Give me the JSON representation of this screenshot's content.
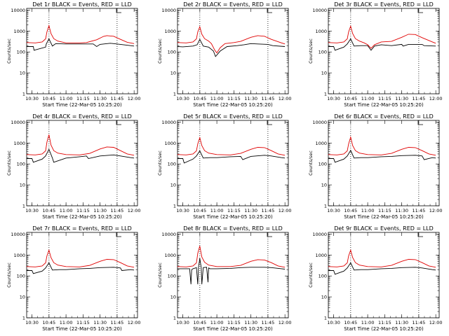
{
  "chart_data": [
    {
      "type": "line",
      "title": "Det 1r BLACK = Events, RED = LLD",
      "xlabel": "Start Time (22-Mar-05 10:25:20)",
      "ylabel": "Counts/sec",
      "xticks": [
        "10:30",
        "10:45",
        "11:00",
        "11:15",
        "11:30",
        "11:45",
        "12:00"
      ],
      "yticks": [
        "1",
        "10",
        "100",
        "1000",
        "10000"
      ],
      "ylim": [
        1,
        12000
      ],
      "yscale": "log",
      "series": [
        {
          "name": "Events",
          "color": "#000000",
          "x": [
            10.42,
            10.52,
            10.53,
            10.7,
            10.71,
            10.75,
            10.8,
            10.85,
            11.0,
            11.25,
            11.4,
            11.45,
            11.5,
            11.65,
            11.7,
            11.8,
            11.95,
            12.0
          ],
          "y": [
            180,
            180,
            120,
            170,
            240,
            420,
            190,
            250,
            240,
            240,
            240,
            180,
            230,
            260,
            250,
            230,
            200,
            190
          ]
        },
        {
          "name": "LLD",
          "color": "#e00000",
          "x": [
            10.42,
            10.55,
            10.65,
            10.7,
            10.72,
            10.75,
            10.78,
            10.82,
            10.88,
            11.0,
            11.2,
            11.3,
            11.45,
            11.55,
            11.6,
            11.7,
            11.8,
            11.9,
            12.0
          ],
          "y": [
            280,
            270,
            300,
            420,
            900,
            1800,
            750,
            430,
            330,
            270,
            270,
            280,
            380,
            550,
            600,
            560,
            400,
            290,
            250
          ]
        }
      ]
    },
    {
      "type": "line",
      "title": "Det 2r BLACK = Events, RED = LLD",
      "xlabel": "Start Time (22-Mar-05 10:25:20)",
      "ylabel": "Counts/sec",
      "xticks": [
        "10:30",
        "10:45",
        "11:00",
        "11:15",
        "11:30",
        "11:45",
        "12:00"
      ],
      "yticks": [
        "1",
        "10",
        "100",
        "1000",
        "10000"
      ],
      "ylim": [
        1,
        12000
      ],
      "yscale": "log",
      "series": [
        {
          "name": "Events",
          "color": "#000000",
          "x": [
            10.42,
            10.5,
            10.65,
            10.71,
            10.75,
            10.8,
            10.88,
            10.95,
            10.98,
            11.05,
            11.15,
            11.3,
            11.4,
            11.5,
            11.6,
            11.75,
            11.82,
            12.0
          ],
          "y": [
            180,
            175,
            190,
            220,
            400,
            190,
            170,
            110,
            60,
            110,
            180,
            200,
            220,
            250,
            240,
            230,
            200,
            180
          ]
        },
        {
          "name": "LLD",
          "color": "#e00000",
          "x": [
            10.42,
            10.55,
            10.65,
            10.7,
            10.72,
            10.75,
            10.78,
            10.82,
            10.88,
            10.92,
            10.97,
            11.0,
            11.05,
            11.12,
            11.25,
            11.35,
            11.5,
            11.6,
            11.7,
            11.8,
            11.95,
            12.0
          ],
          "y": [
            280,
            270,
            300,
            420,
            900,
            1600,
            700,
            430,
            330,
            250,
            120,
            90,
            160,
            250,
            280,
            320,
            500,
            600,
            560,
            400,
            270,
            240
          ]
        }
      ]
    },
    {
      "type": "line",
      "title": "Det 3r BLACK = Events, RED = LLD",
      "xlabel": "Start Time (22-Mar-05 10:25:20)",
      "ylabel": "Counts/sec",
      "xticks": [
        "10:30",
        "10:45",
        "11:00",
        "11:15",
        "11:30",
        "11:45",
        "12:00"
      ],
      "yticks": [
        "1",
        "10",
        "100",
        "1000",
        "10000"
      ],
      "ylim": [
        1,
        12000
      ],
      "yscale": "log",
      "series": [
        {
          "name": "Events",
          "color": "#000000",
          "x": [
            10.42,
            10.5,
            10.52,
            10.65,
            10.7,
            10.75,
            10.8,
            10.9,
            11.0,
            11.05,
            11.1,
            11.2,
            11.35,
            11.5,
            11.52,
            11.6,
            11.8,
            11.83,
            12.0
          ],
          "y": [
            180,
            180,
            120,
            170,
            240,
            420,
            190,
            200,
            200,
            120,
            190,
            220,
            200,
            230,
            190,
            230,
            230,
            200,
            190
          ]
        },
        {
          "name": "LLD",
          "color": "#e00000",
          "x": [
            10.42,
            10.55,
            10.65,
            10.7,
            10.72,
            10.75,
            10.78,
            10.82,
            10.88,
            10.95,
            11.0,
            11.05,
            11.1,
            11.2,
            11.35,
            11.5,
            11.6,
            11.7,
            11.8,
            11.95,
            12.0
          ],
          "y": [
            280,
            270,
            300,
            420,
            900,
            1700,
            750,
            430,
            330,
            270,
            220,
            150,
            220,
            300,
            320,
            500,
            700,
            680,
            480,
            300,
            260
          ]
        }
      ]
    },
    {
      "type": "line",
      "title": "Det 4r BLACK = Events, RED = LLD",
      "xlabel": "Start Time (22-Mar-05 10:25:20)",
      "ylabel": "Counts/sec",
      "xticks": [
        "10:30",
        "10:45",
        "11:00",
        "11:15",
        "11:30",
        "11:45",
        "12:00"
      ],
      "yticks": [
        "1",
        "10",
        "100",
        "1000",
        "10000"
      ],
      "ylim": [
        1,
        12000
      ],
      "yscale": "log",
      "series": [
        {
          "name": "Events",
          "color": "#000000",
          "x": [
            10.42,
            10.5,
            10.52,
            10.65,
            10.7,
            10.75,
            10.8,
            10.82,
            11.0,
            11.2,
            11.3,
            11.33,
            11.5,
            11.7,
            11.8,
            11.95,
            12.0
          ],
          "y": [
            180,
            180,
            120,
            170,
            240,
            500,
            190,
            120,
            190,
            220,
            240,
            180,
            240,
            270,
            240,
            200,
            190
          ]
        },
        {
          "name": "LLD",
          "color": "#e00000",
          "x": [
            10.42,
            10.55,
            10.65,
            10.7,
            10.72,
            10.75,
            10.78,
            10.82,
            10.88,
            11.0,
            11.2,
            11.35,
            11.5,
            11.6,
            11.7,
            11.8,
            11.9,
            12.0
          ],
          "y": [
            280,
            270,
            300,
            420,
            1100,
            2500,
            800,
            430,
            330,
            280,
            270,
            320,
            520,
            650,
            620,
            430,
            300,
            260
          ]
        }
      ]
    },
    {
      "type": "line",
      "title": "Det 5r BLACK = Events, RED = LLD",
      "xlabel": "Start Time (22-Mar-05 10:25:20)",
      "ylabel": "Counts/sec",
      "xticks": [
        "10:30",
        "10:45",
        "11:00",
        "11:15",
        "11:30",
        "11:45",
        "12:00"
      ],
      "yticks": [
        "1",
        "10",
        "100",
        "1000",
        "10000"
      ],
      "ylim": [
        1,
        12000
      ],
      "yscale": "log",
      "series": [
        {
          "name": "Events",
          "color": "#000000",
          "x": [
            10.42,
            10.5,
            10.52,
            10.65,
            10.7,
            10.75,
            10.8,
            10.9,
            11.0,
            11.2,
            11.35,
            11.38,
            11.5,
            11.7,
            11.8,
            11.95,
            12.0
          ],
          "y": [
            180,
            180,
            110,
            170,
            240,
            420,
            190,
            200,
            200,
            220,
            230,
            160,
            230,
            260,
            240,
            200,
            190
          ]
        },
        {
          "name": "LLD",
          "color": "#e00000",
          "x": [
            10.42,
            10.55,
            10.65,
            10.7,
            10.72,
            10.75,
            10.78,
            10.82,
            10.88,
            11.0,
            11.2,
            11.35,
            11.5,
            11.6,
            11.7,
            11.8,
            11.9,
            12.0
          ],
          "y": [
            280,
            270,
            300,
            420,
            900,
            1800,
            750,
            430,
            330,
            280,
            270,
            320,
            500,
            620,
            600,
            430,
            300,
            260
          ]
        }
      ]
    },
    {
      "type": "line",
      "title": "Det 6r BLACK = Events, RED = LLD",
      "xlabel": "Start Time (22-Mar-05 10:25:20)",
      "ylabel": "Counts/sec",
      "xticks": [
        "10:30",
        "10:45",
        "11:00",
        "11:15",
        "11:30",
        "11:45",
        "12:00"
      ],
      "yticks": [
        "1",
        "10",
        "100",
        "1000",
        "10000"
      ],
      "ylim": [
        1,
        12000
      ],
      "yscale": "log",
      "series": [
        {
          "name": "Events",
          "color": "#000000",
          "x": [
            10.42,
            10.5,
            10.52,
            10.65,
            10.7,
            10.75,
            10.8,
            10.9,
            11.0,
            11.2,
            11.35,
            11.5,
            11.7,
            11.8,
            11.83,
            11.95,
            12.0
          ],
          "y": [
            180,
            180,
            120,
            170,
            240,
            440,
            190,
            200,
            200,
            220,
            230,
            250,
            260,
            240,
            160,
            200,
            190
          ]
        },
        {
          "name": "LLD",
          "color": "#e00000",
          "x": [
            10.42,
            10.55,
            10.65,
            10.7,
            10.72,
            10.75,
            10.78,
            10.82,
            10.88,
            11.0,
            11.2,
            11.35,
            11.5,
            11.6,
            11.7,
            11.8,
            11.9,
            12.0
          ],
          "y": [
            280,
            270,
            300,
            420,
            900,
            1900,
            750,
            430,
            330,
            280,
            270,
            320,
            500,
            620,
            600,
            430,
            300,
            260
          ]
        }
      ]
    },
    {
      "type": "line",
      "title": "Det 7r BLACK = Events, RED = LLD",
      "xlabel": "Start Time (22-Mar-05 10:25:20)",
      "ylabel": "Counts/sec",
      "xticks": [
        "10:30",
        "10:45",
        "11:00",
        "11:15",
        "11:30",
        "11:45",
        "12:00"
      ],
      "yticks": [
        "1",
        "10",
        "100",
        "1000",
        "10000"
      ],
      "ylim": [
        1,
        12000
      ],
      "yscale": "log",
      "series": [
        {
          "name": "Events",
          "color": "#000000",
          "x": [
            10.42,
            10.5,
            10.52,
            10.65,
            10.7,
            10.75,
            10.8,
            10.9,
            11.0,
            11.2,
            11.35,
            11.5,
            11.7,
            11.8,
            11.82,
            11.95,
            12.0
          ],
          "y": [
            180,
            180,
            130,
            170,
            240,
            420,
            190,
            200,
            200,
            220,
            230,
            250,
            260,
            240,
            180,
            200,
            190
          ]
        },
        {
          "name": "LLD",
          "color": "#e00000",
          "x": [
            10.42,
            10.55,
            10.65,
            10.7,
            10.72,
            10.75,
            10.78,
            10.82,
            10.88,
            11.0,
            11.2,
            11.35,
            11.5,
            11.6,
            11.7,
            11.8,
            11.9,
            12.0
          ],
          "y": [
            280,
            270,
            300,
            420,
            900,
            1700,
            750,
            430,
            330,
            280,
            270,
            320,
            500,
            620,
            600,
            430,
            300,
            260
          ]
        }
      ]
    },
    {
      "type": "line",
      "title": "Det 8r BLACK = Events, RED = LLD",
      "xlabel": "Start Time (22-Mar-05 10:25:20)",
      "ylabel": "Counts/sec",
      "xticks": [
        "10:30",
        "10:45",
        "11:00",
        "11:15",
        "11:30",
        "11:45",
        "12:00"
      ],
      "yticks": [
        "1",
        "10",
        "100",
        "1000",
        "10000"
      ],
      "ylim": [
        1,
        12000
      ],
      "yscale": "log",
      "series": [
        {
          "name": "Events",
          "color": "#000000",
          "x": [
            10.42,
            10.6,
            10.62,
            10.63,
            10.65,
            10.7,
            10.72,
            10.73,
            10.75,
            10.77,
            10.78,
            10.8,
            10.85,
            10.87,
            10.88,
            10.9,
            11.0,
            11.2,
            11.35,
            11.5,
            11.7,
            11.8,
            11.95,
            12.0
          ],
          "y": [
            220,
            220,
            40,
            200,
            220,
            250,
            40,
            250,
            700,
            250,
            40,
            250,
            260,
            50,
            240,
            220,
            220,
            230,
            250,
            260,
            260,
            250,
            220,
            210
          ]
        },
        {
          "name": "LLD",
          "color": "#e00000",
          "x": [
            10.42,
            10.55,
            10.65,
            10.7,
            10.72,
            10.75,
            10.78,
            10.82,
            10.88,
            11.0,
            11.2,
            11.35,
            11.5,
            11.6,
            11.7,
            11.8,
            11.9,
            12.0
          ],
          "y": [
            280,
            270,
            300,
            420,
            1200,
            2700,
            800,
            450,
            330,
            280,
            280,
            320,
            500,
            600,
            580,
            430,
            300,
            260
          ]
        }
      ]
    },
    {
      "type": "line",
      "title": "Det 9r BLACK = Events, RED = LLD",
      "xlabel": "Start Time (22-Mar-05 10:25:20)",
      "ylabel": "Counts/sec",
      "xticks": [
        "10:30",
        "10:45",
        "11:00",
        "11:15",
        "11:30",
        "11:45",
        "12:00"
      ],
      "yticks": [
        "1",
        "10",
        "100",
        "1000",
        "10000"
      ],
      "ylim": [
        1,
        12000
      ],
      "yscale": "log",
      "series": [
        {
          "name": "Events",
          "color": "#000000",
          "x": [
            10.42,
            10.5,
            10.52,
            10.65,
            10.7,
            10.75,
            10.8,
            10.9,
            11.0,
            11.2,
            11.35,
            11.5,
            11.7,
            11.8,
            11.95,
            12.0
          ],
          "y": [
            180,
            180,
            120,
            170,
            240,
            420,
            190,
            200,
            200,
            220,
            230,
            250,
            260,
            240,
            200,
            190
          ]
        },
        {
          "name": "LLD",
          "color": "#e00000",
          "x": [
            10.42,
            10.55,
            10.65,
            10.7,
            10.72,
            10.75,
            10.78,
            10.82,
            10.88,
            11.0,
            11.2,
            11.35,
            11.5,
            11.6,
            11.7,
            11.8,
            11.9,
            12.0
          ],
          "y": [
            280,
            270,
            300,
            420,
            900,
            1700,
            750,
            430,
            330,
            280,
            270,
            320,
            500,
            620,
            600,
            430,
            300,
            260
          ]
        }
      ]
    }
  ]
}
